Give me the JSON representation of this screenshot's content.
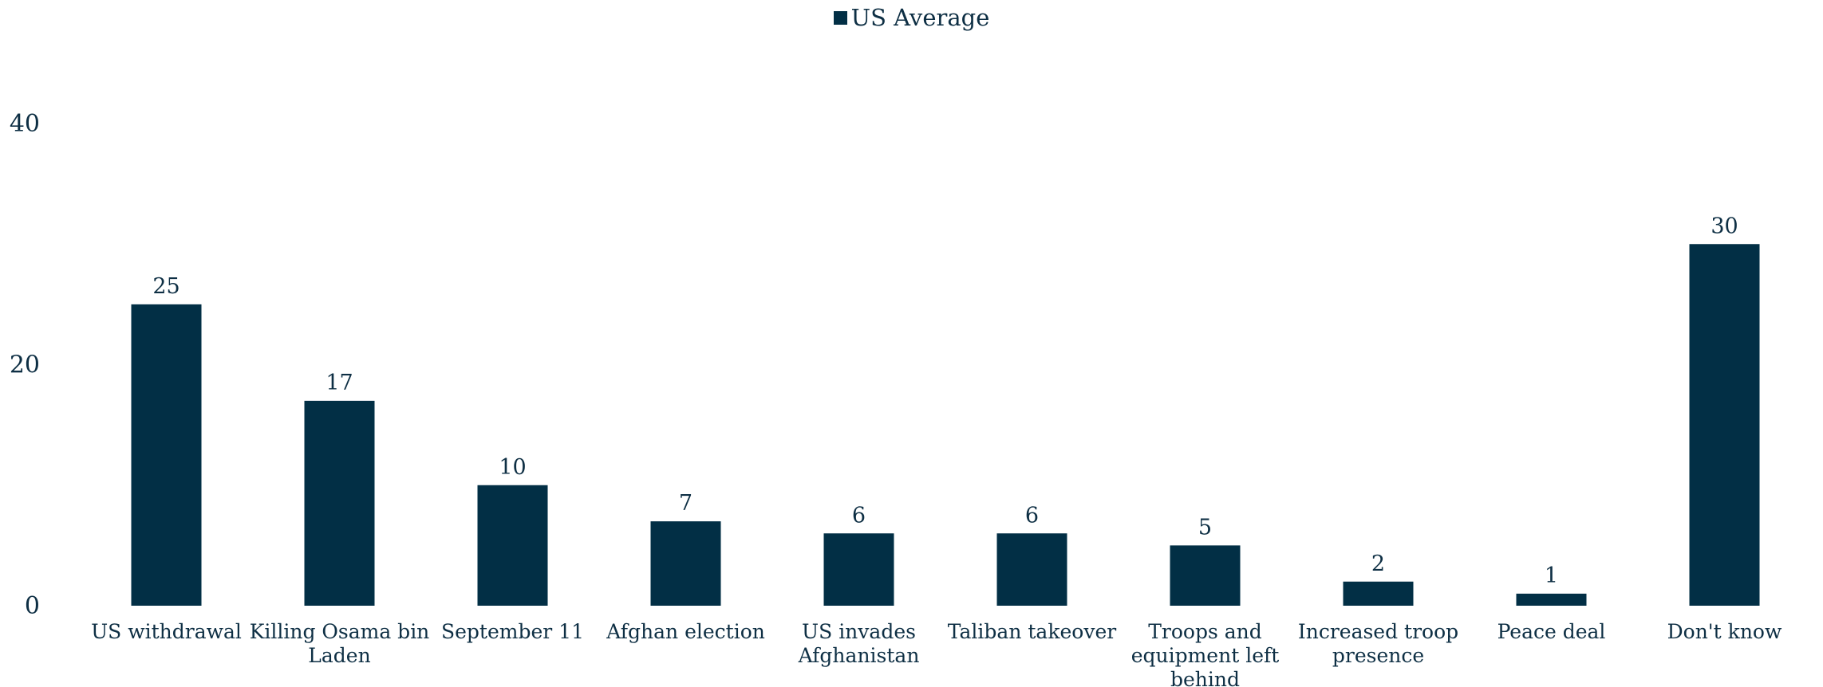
{
  "chart_data": {
    "type": "bar",
    "categories": [
      "US withdrawal",
      "Killing Osama bin Laden",
      "September 11",
      "Afghan election",
      "US invades Afghanistan",
      "Taliban takeover",
      "Troops and equipment left behind",
      "Increased troop presence",
      "Peace deal",
      "Don't know"
    ],
    "category_lines": [
      [
        "US withdrawal"
      ],
      [
        "Killing Osama bin",
        "Laden"
      ],
      [
        "September 11"
      ],
      [
        "Afghan election"
      ],
      [
        "US invades",
        "Afghanistan"
      ],
      [
        "Taliban takeover"
      ],
      [
        "Troops and",
        "equipment left",
        "behind"
      ],
      [
        "Increased troop",
        "presence"
      ],
      [
        "Peace deal"
      ],
      [
        "Don't know"
      ]
    ],
    "series": [
      {
        "name": "US Average",
        "color": "#022f45",
        "values": [
          25,
          17,
          10,
          7,
          6,
          6,
          5,
          2,
          1,
          30
        ]
      }
    ],
    "ylim": [
      0,
      40
    ],
    "yticks": [
      0,
      20,
      40
    ],
    "grid": false,
    "legend_position": "top-center",
    "show_data_labels": true
  }
}
